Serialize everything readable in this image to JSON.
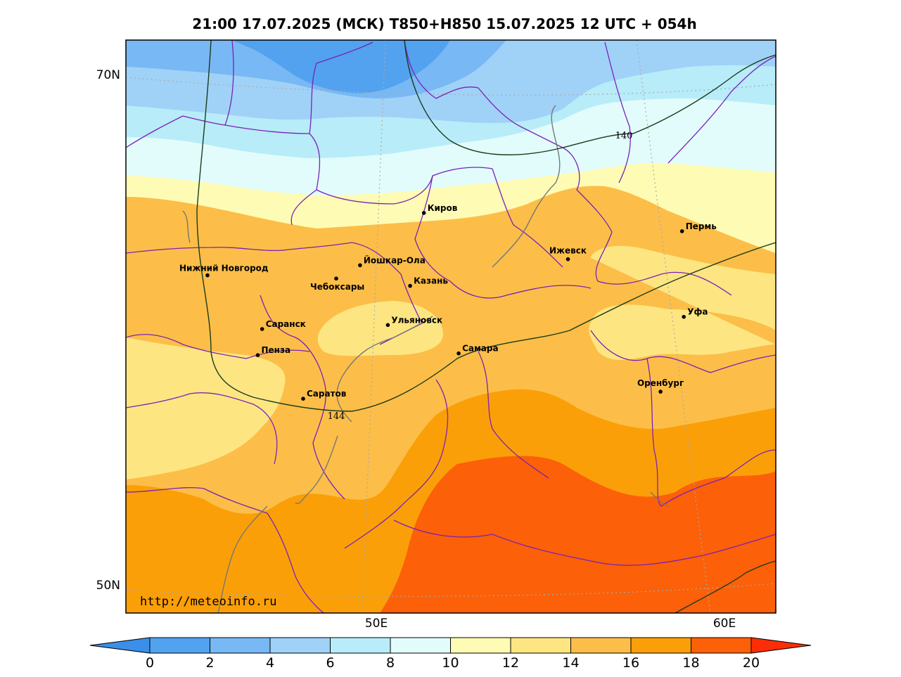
{
  "title": "21:00 17.07.2025 (МСК) T850+H850 15.07.2025 12 UTC + 054h",
  "axes": {
    "lat_labels": [
      "70N",
      "50N"
    ],
    "lon_labels": [
      "50E",
      "60E"
    ]
  },
  "contour_labels": [
    "140",
    "144"
  ],
  "watermark": "http://meteoinfo.ru",
  "cities": [
    {
      "name": "Киров",
      "lat": 58.6,
      "lon": 49.7
    },
    {
      "name": "Пермь",
      "lat": 58.0,
      "lon": 56.2
    },
    {
      "name": "Нижний Новгород",
      "lat": 56.3,
      "lon": 44.0
    },
    {
      "name": "Йошкар-Ола",
      "lat": 56.6,
      "lon": 47.9
    },
    {
      "name": "Ижевск",
      "lat": 56.85,
      "lon": 53.2
    },
    {
      "name": "Чебоксары",
      "lat": 56.1,
      "lon": 47.25
    },
    {
      "name": "Казань",
      "lat": 55.8,
      "lon": 49.1
    },
    {
      "name": "Уфа",
      "lat": 54.7,
      "lon": 55.95
    },
    {
      "name": "Саранск",
      "lat": 54.2,
      "lon": 45.2
    },
    {
      "name": "Ульяновск",
      "lat": 54.3,
      "lon": 48.4
    },
    {
      "name": "Пенза",
      "lat": 53.2,
      "lon": 45.0
    },
    {
      "name": "Самара",
      "lat": 53.2,
      "lon": 50.1
    },
    {
      "name": "Оренбург",
      "lat": 51.8,
      "lon": 55.1
    },
    {
      "name": "Саратов",
      "lat": 51.5,
      "lon": 46.0
    }
  ],
  "colorbar": {
    "ticks": [
      "0",
      "2",
      "4",
      "6",
      "8",
      "10",
      "12",
      "14",
      "16",
      "18",
      "20"
    ],
    "colors": [
      "#3b8fe8",
      "#52a2f0",
      "#78b8f4",
      "#a0d2f8",
      "#b8ecf8",
      "#e2fcfc",
      "#fefcb4",
      "#fde682",
      "#fcbe48",
      "#fb9f08",
      "#fc6008",
      "#fc2e08"
    ]
  }
}
